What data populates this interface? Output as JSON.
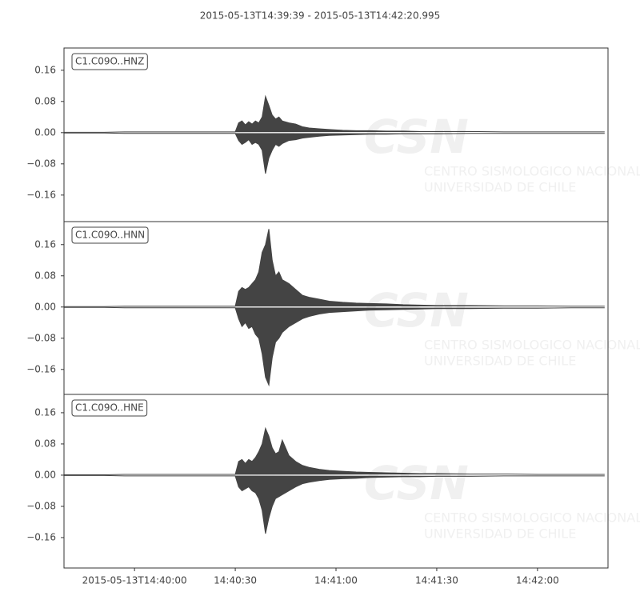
{
  "watermark": {
    "logo": "CSN",
    "lines": [
      "CENTRO SISMOLOGICO NACIONAL",
      "UNIVERSIDAD DE CHILE"
    ]
  },
  "chart_data": [
    {
      "type": "area",
      "title": "2015-05-13T14:39:39  -  2015-05-13T14:42:20.995",
      "label": "C1.C09O..HNZ",
      "xlim": [
        "2015-05-13T14:39:39",
        "2015-05-13T14:42:20.995"
      ],
      "x": [
        "2015-05-13T14:39:39",
        "2015-05-13T14:39:45",
        "2015-05-13T14:39:51",
        "2015-05-13T14:39:57",
        "2015-05-13T14:40:03",
        "2015-05-13T14:40:09",
        "2015-05-13T14:40:15",
        "2015-05-13T14:40:21",
        "2015-05-13T14:40:27",
        "2015-05-13T14:40:30",
        "2015-05-13T14:40:31",
        "2015-05-13T14:40:32",
        "2015-05-13T14:40:33",
        "2015-05-13T14:40:34",
        "2015-05-13T14:40:35",
        "2015-05-13T14:40:36",
        "2015-05-13T14:40:37",
        "2015-05-13T14:40:38",
        "2015-05-13T14:40:39",
        "2015-05-13T14:40:40",
        "2015-05-13T14:40:41",
        "2015-05-13T14:40:42",
        "2015-05-13T14:40:43",
        "2015-05-13T14:40:44",
        "2015-05-13T14:40:46",
        "2015-05-13T14:40:48",
        "2015-05-13T14:40:50",
        "2015-05-13T14:40:52",
        "2015-05-13T14:40:55",
        "2015-05-13T14:40:58",
        "2015-05-13T14:41:02",
        "2015-05-13T14:41:06",
        "2015-05-13T14:41:10",
        "2015-05-13T14:41:15",
        "2015-05-13T14:41:20",
        "2015-05-13T14:41:25",
        "2015-05-13T14:41:30",
        "2015-05-13T14:41:40",
        "2015-05-13T14:41:50",
        "2015-05-13T14:42:00",
        "2015-05-13T14:42:10",
        "2015-05-13T14:42:20"
      ],
      "series": [
        {
          "color": "#444444",
          "values": [
            0.001,
            0.001,
            0.001,
            0.002,
            0.002,
            0.002,
            0.002,
            0.002,
            0.002,
            0.002,
            0.025,
            0.03,
            0.02,
            0.028,
            0.022,
            0.03,
            0.025,
            0.04,
            0.093,
            0.07,
            0.045,
            0.035,
            0.04,
            0.03,
            0.025,
            0.022,
            0.015,
            0.012,
            0.01,
            0.008,
            0.006,
            0.005,
            0.005,
            0.004,
            0.004,
            0.003,
            0.003,
            0.003,
            0.002,
            0.002,
            0.002,
            0.002
          ]
        },
        {
          "color": "#444444",
          "values": [
            -0.001,
            -0.001,
            -0.001,
            -0.002,
            -0.002,
            -0.002,
            -0.002,
            -0.002,
            -0.002,
            -0.002,
            -0.02,
            -0.03,
            -0.025,
            -0.018,
            -0.03,
            -0.025,
            -0.03,
            -0.045,
            -0.105,
            -0.065,
            -0.045,
            -0.03,
            -0.035,
            -0.028,
            -0.02,
            -0.018,
            -0.014,
            -0.012,
            -0.009,
            -0.007,
            -0.006,
            -0.005,
            -0.004,
            -0.004,
            -0.003,
            -0.003,
            -0.003,
            -0.002,
            -0.002,
            -0.002,
            -0.002,
            -0.002
          ]
        }
      ],
      "ylim": [
        -0.228,
        0.217
      ],
      "yticks": [
        {
          "value": 0.16,
          "label": "0.16"
        },
        {
          "value": 0.08,
          "label": "0.08"
        },
        {
          "value": 0,
          "label": "0.00"
        },
        {
          "value": -0.08,
          "label": "−0.08"
        },
        {
          "value": -0.16,
          "label": "−0.16"
        }
      ]
    },
    {
      "type": "area",
      "label": "C1.C09O..HNN",
      "xlim": [
        "2015-05-13T14:39:39",
        "2015-05-13T14:42:20.995"
      ],
      "x": [
        "2015-05-13T14:39:39",
        "2015-05-13T14:39:45",
        "2015-05-13T14:39:51",
        "2015-05-13T14:39:57",
        "2015-05-13T14:40:03",
        "2015-05-13T14:40:09",
        "2015-05-13T14:40:15",
        "2015-05-13T14:40:21",
        "2015-05-13T14:40:27",
        "2015-05-13T14:40:30",
        "2015-05-13T14:40:31",
        "2015-05-13T14:40:32",
        "2015-05-13T14:40:33",
        "2015-05-13T14:40:34",
        "2015-05-13T14:40:35",
        "2015-05-13T14:40:36",
        "2015-05-13T14:40:37",
        "2015-05-13T14:40:38",
        "2015-05-13T14:40:39",
        "2015-05-13T14:40:40",
        "2015-05-13T14:40:41",
        "2015-05-13T14:40:42",
        "2015-05-13T14:40:43",
        "2015-05-13T14:40:44",
        "2015-05-13T14:40:46",
        "2015-05-13T14:40:48",
        "2015-05-13T14:40:50",
        "2015-05-13T14:40:52",
        "2015-05-13T14:40:55",
        "2015-05-13T14:40:58",
        "2015-05-13T14:41:02",
        "2015-05-13T14:41:06",
        "2015-05-13T14:41:10",
        "2015-05-13T14:41:15",
        "2015-05-13T14:41:20",
        "2015-05-13T14:41:25",
        "2015-05-13T14:41:30",
        "2015-05-13T14:41:40",
        "2015-05-13T14:41:50",
        "2015-05-13T14:42:00",
        "2015-05-13T14:42:10",
        "2015-05-13T14:42:20"
      ],
      "series": [
        {
          "color": "#444444",
          "values": [
            0.001,
            0.001,
            0.001,
            0.002,
            0.002,
            0.002,
            0.002,
            0.002,
            0.002,
            0.002,
            0.04,
            0.05,
            0.045,
            0.05,
            0.06,
            0.07,
            0.09,
            0.14,
            0.16,
            0.2,
            0.12,
            0.08,
            0.09,
            0.07,
            0.06,
            0.045,
            0.03,
            0.025,
            0.02,
            0.015,
            0.012,
            0.01,
            0.009,
            0.008,
            0.006,
            0.005,
            0.004,
            0.004,
            0.003,
            0.003,
            0.002,
            0.002
          ]
        },
        {
          "color": "#444444",
          "values": [
            -0.001,
            -0.001,
            -0.001,
            -0.002,
            -0.002,
            -0.002,
            -0.002,
            -0.002,
            -0.002,
            -0.002,
            -0.03,
            -0.05,
            -0.04,
            -0.055,
            -0.05,
            -0.07,
            -0.08,
            -0.12,
            -0.18,
            -0.2,
            -0.13,
            -0.09,
            -0.08,
            -0.065,
            -0.05,
            -0.04,
            -0.03,
            -0.024,
            -0.018,
            -0.014,
            -0.012,
            -0.01,
            -0.008,
            -0.007,
            -0.006,
            -0.005,
            -0.004,
            -0.004,
            -0.003,
            -0.003,
            -0.002,
            -0.002
          ]
        }
      ],
      "ylim": [
        -0.224,
        0.219
      ],
      "yticks": [
        {
          "value": 0.16,
          "label": "0.16"
        },
        {
          "value": 0.08,
          "label": "0.08"
        },
        {
          "value": 0,
          "label": "0.00"
        },
        {
          "value": -0.08,
          "label": "−0.08"
        },
        {
          "value": -0.16,
          "label": "−0.16"
        }
      ]
    },
    {
      "type": "area",
      "label": "C1.C09O..HNE",
      "xlim": [
        "2015-05-13T14:39:39",
        "2015-05-13T14:42:20.995"
      ],
      "x": [
        "2015-05-13T14:39:39",
        "2015-05-13T14:39:45",
        "2015-05-13T14:39:51",
        "2015-05-13T14:39:57",
        "2015-05-13T14:40:03",
        "2015-05-13T14:40:09",
        "2015-05-13T14:40:15",
        "2015-05-13T14:40:21",
        "2015-05-13T14:40:27",
        "2015-05-13T14:40:30",
        "2015-05-13T14:40:31",
        "2015-05-13T14:40:32",
        "2015-05-13T14:40:33",
        "2015-05-13T14:40:34",
        "2015-05-13T14:40:35",
        "2015-05-13T14:40:36",
        "2015-05-13T14:40:37",
        "2015-05-13T14:40:38",
        "2015-05-13T14:40:39",
        "2015-05-13T14:40:40",
        "2015-05-13T14:40:41",
        "2015-05-13T14:40:42",
        "2015-05-13T14:40:43",
        "2015-05-13T14:40:44",
        "2015-05-13T14:40:46",
        "2015-05-13T14:40:48",
        "2015-05-13T14:40:50",
        "2015-05-13T14:40:52",
        "2015-05-13T14:40:55",
        "2015-05-13T14:40:58",
        "2015-05-13T14:41:02",
        "2015-05-13T14:41:06",
        "2015-05-13T14:41:10",
        "2015-05-13T14:41:15",
        "2015-05-13T14:41:20",
        "2015-05-13T14:41:25",
        "2015-05-13T14:41:30",
        "2015-05-13T14:41:40",
        "2015-05-13T14:41:50",
        "2015-05-13T14:42:00",
        "2015-05-13T14:42:10",
        "2015-05-13T14:42:20"
      ],
      "series": [
        {
          "color": "#444444",
          "values": [
            0.001,
            0.001,
            0.001,
            0.002,
            0.002,
            0.002,
            0.002,
            0.002,
            0.002,
            0.002,
            0.035,
            0.04,
            0.03,
            0.04,
            0.035,
            0.045,
            0.06,
            0.08,
            0.12,
            0.1,
            0.07,
            0.055,
            0.06,
            0.09,
            0.05,
            0.035,
            0.025,
            0.02,
            0.015,
            0.012,
            0.01,
            0.008,
            0.007,
            0.006,
            0.005,
            0.004,
            0.004,
            0.003,
            0.003,
            0.002,
            0.002,
            0.002
          ]
        },
        {
          "color": "#444444",
          "values": [
            -0.001,
            -0.001,
            -0.001,
            -0.002,
            -0.002,
            -0.002,
            -0.002,
            -0.002,
            -0.002,
            -0.002,
            -0.03,
            -0.04,
            -0.035,
            -0.03,
            -0.04,
            -0.045,
            -0.06,
            -0.09,
            -0.15,
            -0.11,
            -0.08,
            -0.06,
            -0.055,
            -0.05,
            -0.04,
            -0.03,
            -0.022,
            -0.018,
            -0.014,
            -0.011,
            -0.009,
            -0.008,
            -0.006,
            -0.005,
            -0.004,
            -0.004,
            -0.003,
            -0.003,
            -0.002,
            -0.002,
            -0.002,
            -0.002
          ]
        }
      ],
      "ylim": [
        -0.238,
        0.207
      ],
      "yticks": [
        {
          "value": 0.16,
          "label": "0.16"
        },
        {
          "value": 0.08,
          "label": "0.08"
        },
        {
          "value": 0,
          "label": "0.00"
        },
        {
          "value": -0.08,
          "label": "−0.08"
        },
        {
          "value": -0.16,
          "label": "−0.16"
        }
      ],
      "xticks": [
        "2015-05-13T14:40:00",
        {
          "value": "2015-05-13T14:40:30",
          "label": "14:40:30"
        },
        {
          "value": "2015-05-13T14:41:00",
          "label": "14:41:00"
        },
        {
          "value": "2015-05-13T14:41:30",
          "label": "14:41:30"
        },
        {
          "value": "2015-05-13T14:42:00",
          "label": "14:42:00"
        }
      ]
    }
  ]
}
